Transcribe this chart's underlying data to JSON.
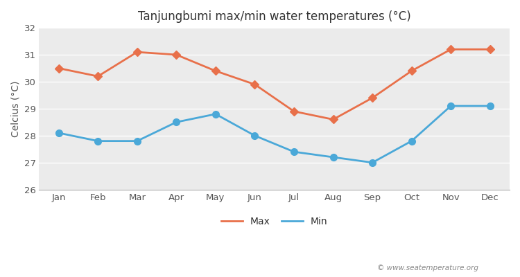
{
  "title": "Tanjungbumi max/min water temperatures (°C)",
  "ylabel": "Celcius (°C)",
  "months": [
    "Jan",
    "Feb",
    "Mar",
    "Apr",
    "May",
    "Jun",
    "Jul",
    "Aug",
    "Sep",
    "Oct",
    "Nov",
    "Dec"
  ],
  "max_temps": [
    30.5,
    30.2,
    31.1,
    31.0,
    30.4,
    29.9,
    28.9,
    28.6,
    29.4,
    30.4,
    31.2,
    31.2
  ],
  "min_temps": [
    28.1,
    27.8,
    27.8,
    28.5,
    28.8,
    28.0,
    27.4,
    27.2,
    27.0,
    27.8,
    29.1,
    29.1
  ],
  "max_color": "#e8704a",
  "min_color": "#4aa8d8",
  "background_color": "#ffffff",
  "plot_bg_color": "#ebebeb",
  "ylim": [
    26,
    32
  ],
  "yticks": [
    26,
    27,
    28,
    29,
    30,
    31,
    32
  ],
  "grid_color": "#ffffff",
  "watermark": "© www.seatemperature.org",
  "marker_max": "D",
  "marker_min": "o",
  "linewidth": 2.0,
  "markersize_max": 6,
  "markersize_min": 7
}
